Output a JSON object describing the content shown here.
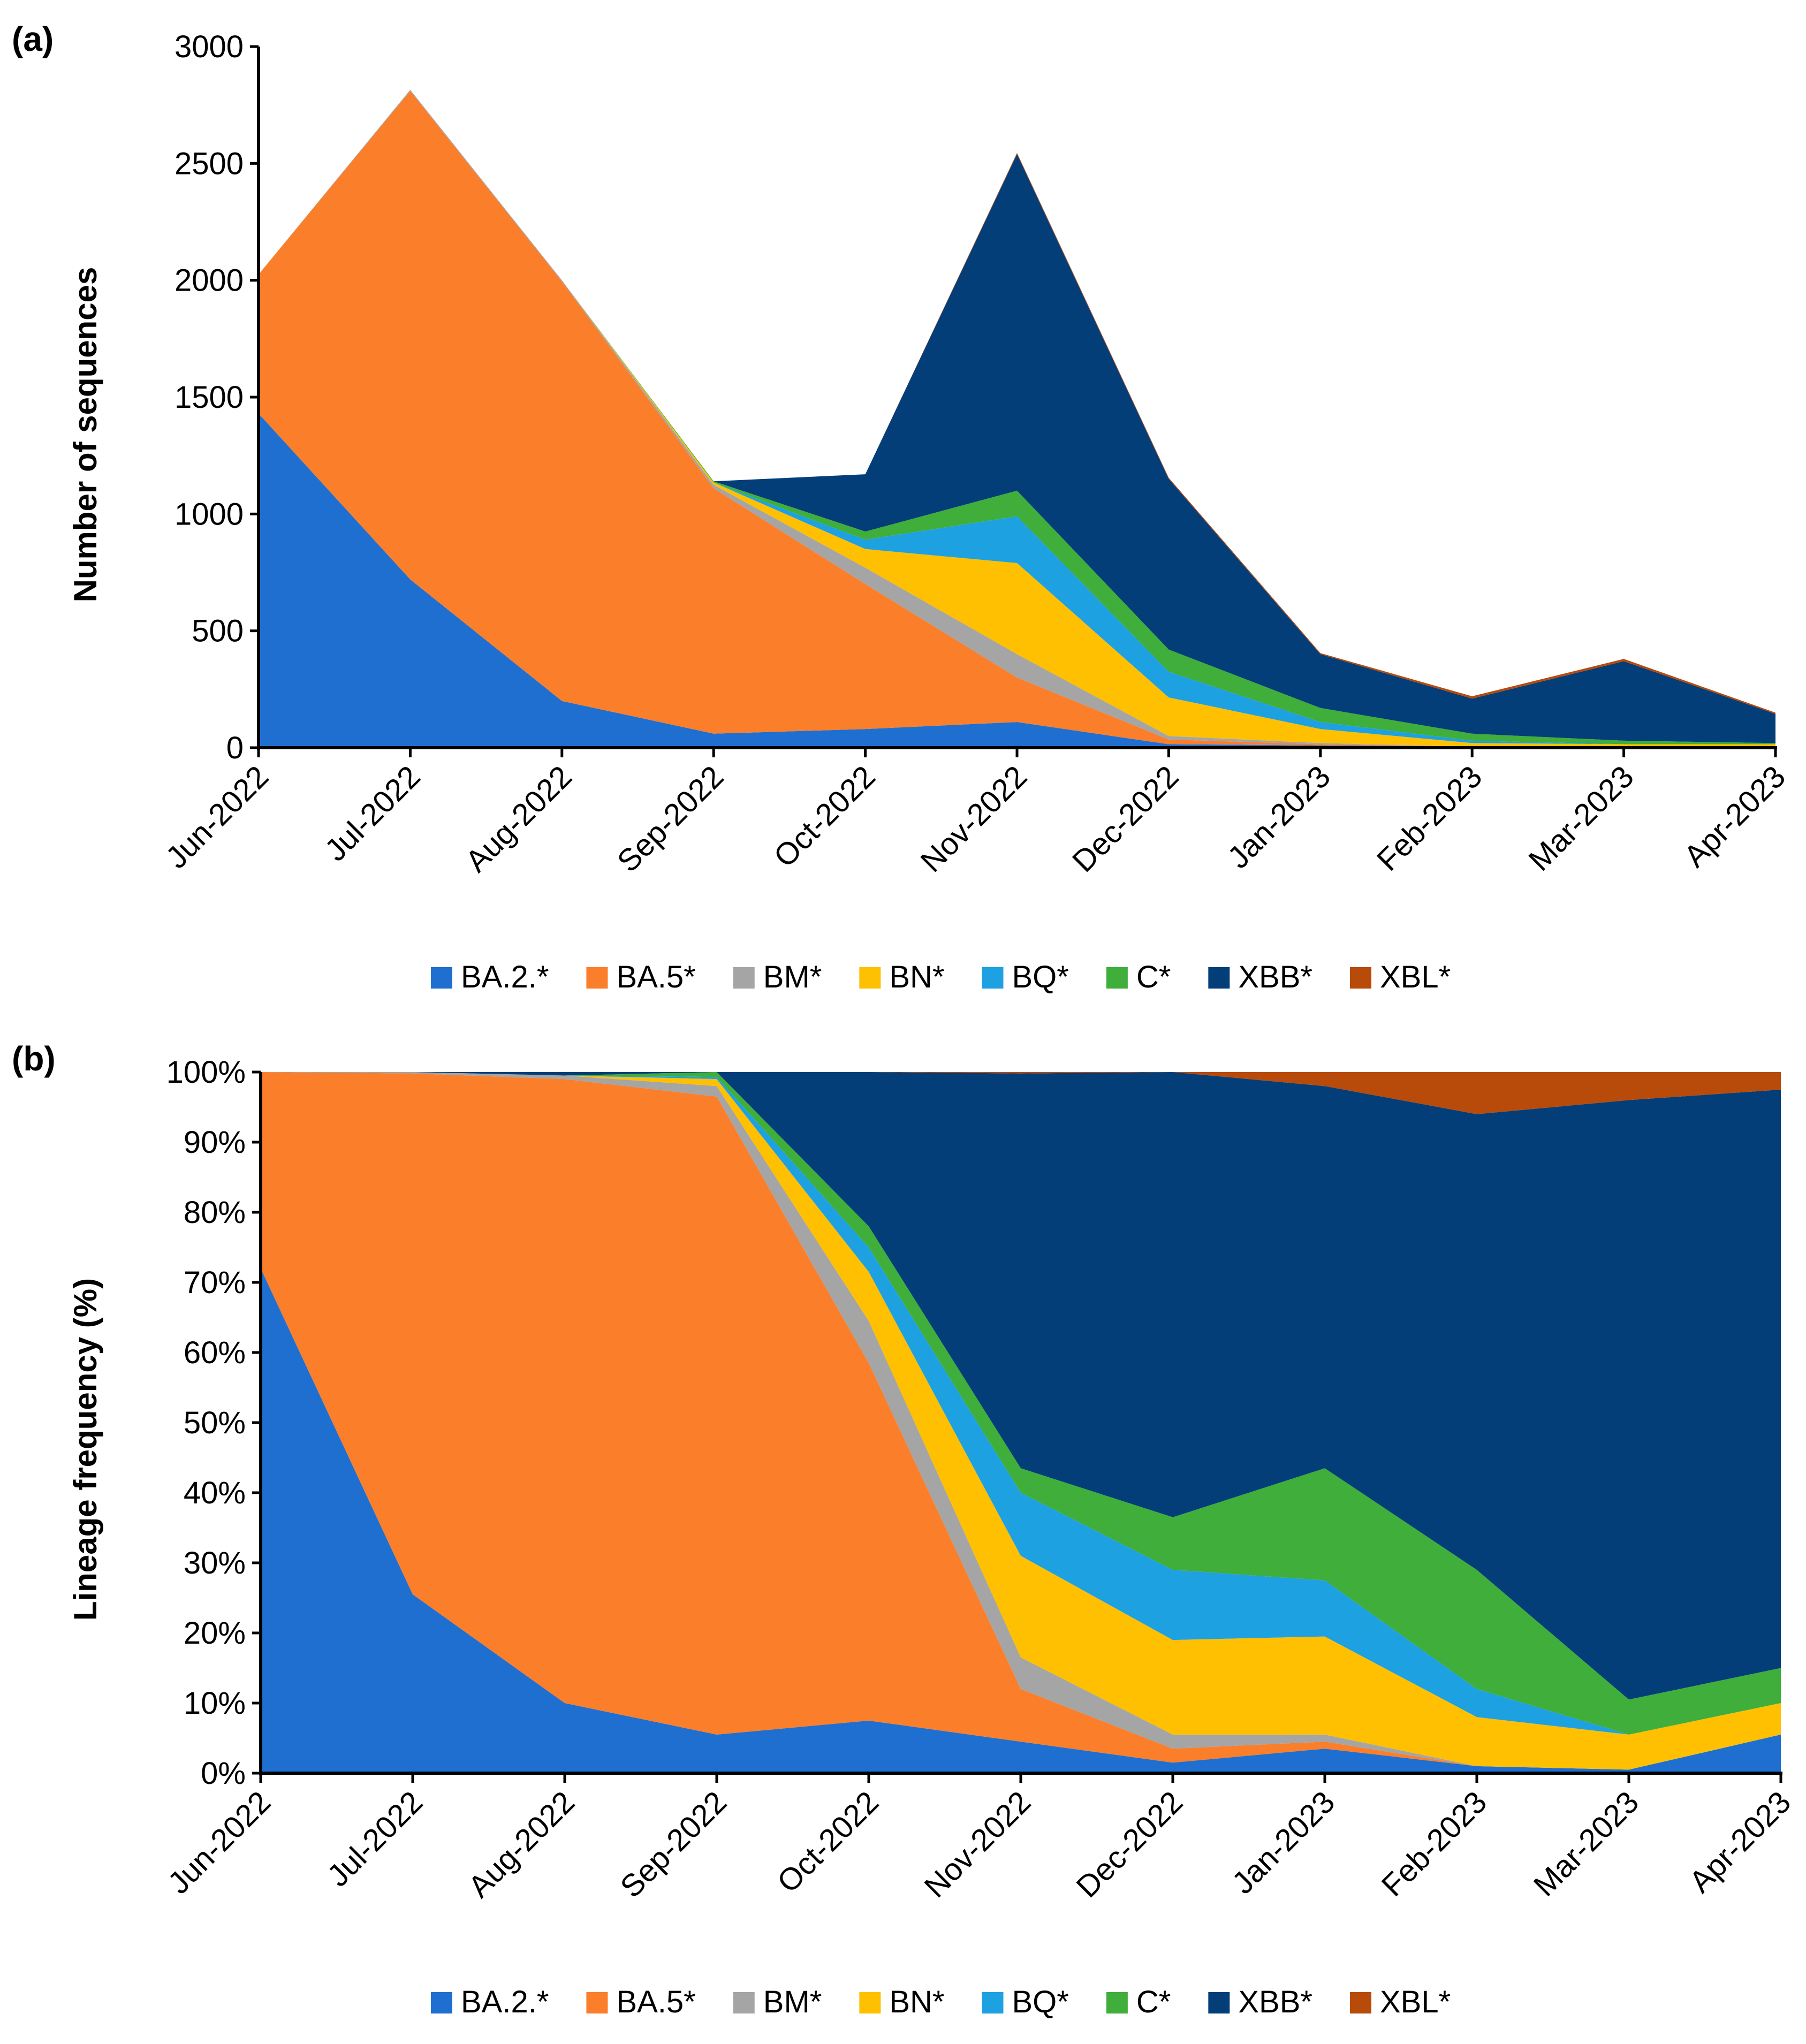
{
  "colors": {
    "BA.2.*": "#1f6fd1",
    "BA.5*": "#fb7e2a",
    "BM*": "#a5a5a5",
    "BN*": "#fec000",
    "BQ*": "#1ea1e1",
    "C*": "#3fae3b",
    "XBB*": "#033e79",
    "XBL*": "#b84a0a"
  },
  "chart_data": [
    {
      "panel": "(a)",
      "type": "area",
      "stacked": true,
      "ylabel": "Number of sequences",
      "xlabel": "",
      "ylim": [
        0,
        3000
      ],
      "yticks": [
        "0",
        "500",
        "1000",
        "1500",
        "2000",
        "2500",
        "3000"
      ],
      "yticks_values": [
        0,
        500,
        1000,
        1500,
        2000,
        2500,
        3000
      ],
      "categories": [
        "Jun-2022",
        "Jul-2022",
        "Aug-2022",
        "Sep-2022",
        "Oct-2022",
        "Nov-2022",
        "Dec-2022",
        "Jan-2023",
        "Feb-2023",
        "Mar-2023",
        "Apr-2023"
      ],
      "legend": [
        "BA.2.*",
        "BA.5*",
        "BM*",
        "BN*",
        "BQ*",
        "C*",
        "XBB*",
        "XBL*"
      ],
      "legend_position": "bottom",
      "series": [
        {
          "name": "BA.2.*",
          "values": [
            1430,
            720,
            200,
            60,
            80,
            110,
            15,
            10,
            5,
            0,
            5
          ]
        },
        {
          "name": "BA.5*",
          "values": [
            595,
            2090,
            1795,
            1050,
            620,
            190,
            20,
            5,
            0,
            0,
            0
          ]
        },
        {
          "name": "BM*",
          "values": [
            0,
            5,
            5,
            15,
            70,
            100,
            15,
            5,
            0,
            0,
            0
          ]
        },
        {
          "name": "BN*",
          "values": [
            0,
            0,
            0,
            10,
            80,
            390,
            165,
            60,
            15,
            15,
            10
          ]
        },
        {
          "name": "BQ*",
          "values": [
            0,
            0,
            0,
            0,
            40,
            200,
            110,
            30,
            10,
            0,
            0
          ]
        },
        {
          "name": "C*",
          "values": [
            0,
            0,
            0,
            5,
            35,
            110,
            95,
            60,
            30,
            15,
            5
          ]
        },
        {
          "name": "XBB*",
          "values": [
            0,
            0,
            0,
            0,
            245,
            1440,
            730,
            230,
            150,
            340,
            125
          ]
        },
        {
          "name": "XBL*",
          "values": [
            0,
            0,
            0,
            0,
            0,
            5,
            5,
            5,
            10,
            10,
            5
          ]
        }
      ]
    },
    {
      "panel": "(b)",
      "type": "area",
      "stacked": true,
      "ylabel": "Lineage frequency (%)",
      "xlabel": "",
      "ylim": [
        0,
        100
      ],
      "yticks": [
        "0%",
        "10%",
        "20%",
        "30%",
        "40%",
        "50%",
        "60%",
        "70%",
        "80%",
        "90%",
        "100%"
      ],
      "yticks_values": [
        0,
        10,
        20,
        30,
        40,
        50,
        60,
        70,
        80,
        90,
        100
      ],
      "categories": [
        "Jun-2022",
        "Jul-2022",
        "Aug-2022",
        "Sep-2022",
        "Oct-2022",
        "Nov-2022",
        "Dec-2022",
        "Jan-2023",
        "Feb-2023",
        "Mar-2023",
        "Apr-2023"
      ],
      "legend": [
        "BA.2.*",
        "BA.5*",
        "BM*",
        "BN*",
        "BQ*",
        "C*",
        "XBB*",
        "XBL*"
      ],
      "legend_position": "bottom",
      "series": [
        {
          "name": "BA.2.*",
          "values": [
            72,
            25.5,
            10,
            5.5,
            7.5,
            4.5,
            1.5,
            3.5,
            1,
            0.5,
            5.5
          ]
        },
        {
          "name": "BA.5*",
          "values": [
            28,
            74.3,
            89,
            91,
            51,
            7.5,
            2,
            1,
            0,
            0,
            0
          ]
        },
        {
          "name": "BM*",
          "values": [
            0,
            0.2,
            0.5,
            1.5,
            6,
            4.5,
            2,
            1,
            0,
            0,
            0
          ]
        },
        {
          "name": "BN*",
          "values": [
            0,
            0,
            0,
            1,
            7,
            14.5,
            13.5,
            14,
            7,
            5,
            4.5
          ]
        },
        {
          "name": "BQ*",
          "values": [
            0,
            0,
            0,
            0.3,
            3.5,
            9,
            10,
            8,
            4,
            0,
            0
          ]
        },
        {
          "name": "C*",
          "values": [
            0,
            0,
            0,
            0.7,
            3,
            3.5,
            7.5,
            16,
            17,
            5,
            5
          ]
        },
        {
          "name": "XBB*",
          "values": [
            0,
            0,
            0.5,
            0,
            22,
            56.3,
            63.5,
            54.5,
            65,
            85.5,
            82.5
          ]
        },
        {
          "name": "XBL*",
          "values": [
            0,
            0,
            0,
            0,
            0,
            0.2,
            0,
            2,
            6,
            4,
            2.5
          ]
        }
      ]
    }
  ]
}
